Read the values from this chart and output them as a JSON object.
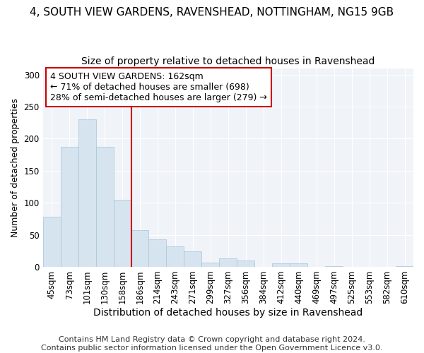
{
  "title": "4, SOUTH VIEW GARDENS, RAVENSHEAD, NOTTINGHAM, NG15 9GB",
  "subtitle": "Size of property relative to detached houses in Ravenshead",
  "xlabel": "Distribution of detached houses by size in Ravenshead",
  "ylabel": "Number of detached properties",
  "categories": [
    "45sqm",
    "73sqm",
    "101sqm",
    "130sqm",
    "158sqm",
    "186sqm",
    "214sqm",
    "243sqm",
    "271sqm",
    "299sqm",
    "327sqm",
    "356sqm",
    "384sqm",
    "412sqm",
    "440sqm",
    "469sqm",
    "497sqm",
    "525sqm",
    "553sqm",
    "582sqm",
    "610sqm"
  ],
  "values": [
    78,
    187,
    230,
    187,
    105,
    57,
    43,
    32,
    24,
    7,
    13,
    10,
    0,
    6,
    6,
    0,
    1,
    0,
    0,
    0,
    1
  ],
  "bar_fill_color": "#d6e4f0",
  "bar_edge_color": "#a8c4d8",
  "highlight_bar_index": 4,
  "vline_color": "#cc0000",
  "annotation_text": "4 SOUTH VIEW GARDENS: 162sqm\n← 71% of detached houses are smaller (698)\n28% of semi-detached houses are larger (279) →",
  "annotation_box_color": "#ffffff",
  "annotation_box_edge_color": "#cc0000",
  "footer_text": "Contains HM Land Registry data © Crown copyright and database right 2024.\nContains public sector information licensed under the Open Government Licence v3.0.",
  "ylim": [
    0,
    310
  ],
  "yticks": [
    0,
    50,
    100,
    150,
    200,
    250,
    300
  ],
  "background_color": "#ffffff",
  "plot_bg_color": "#f0f4f8",
  "grid_color": "#ffffff",
  "title_fontsize": 11,
  "subtitle_fontsize": 10,
  "xlabel_fontsize": 10,
  "ylabel_fontsize": 9,
  "tick_fontsize": 8.5,
  "annotation_fontsize": 9,
  "footer_fontsize": 8
}
